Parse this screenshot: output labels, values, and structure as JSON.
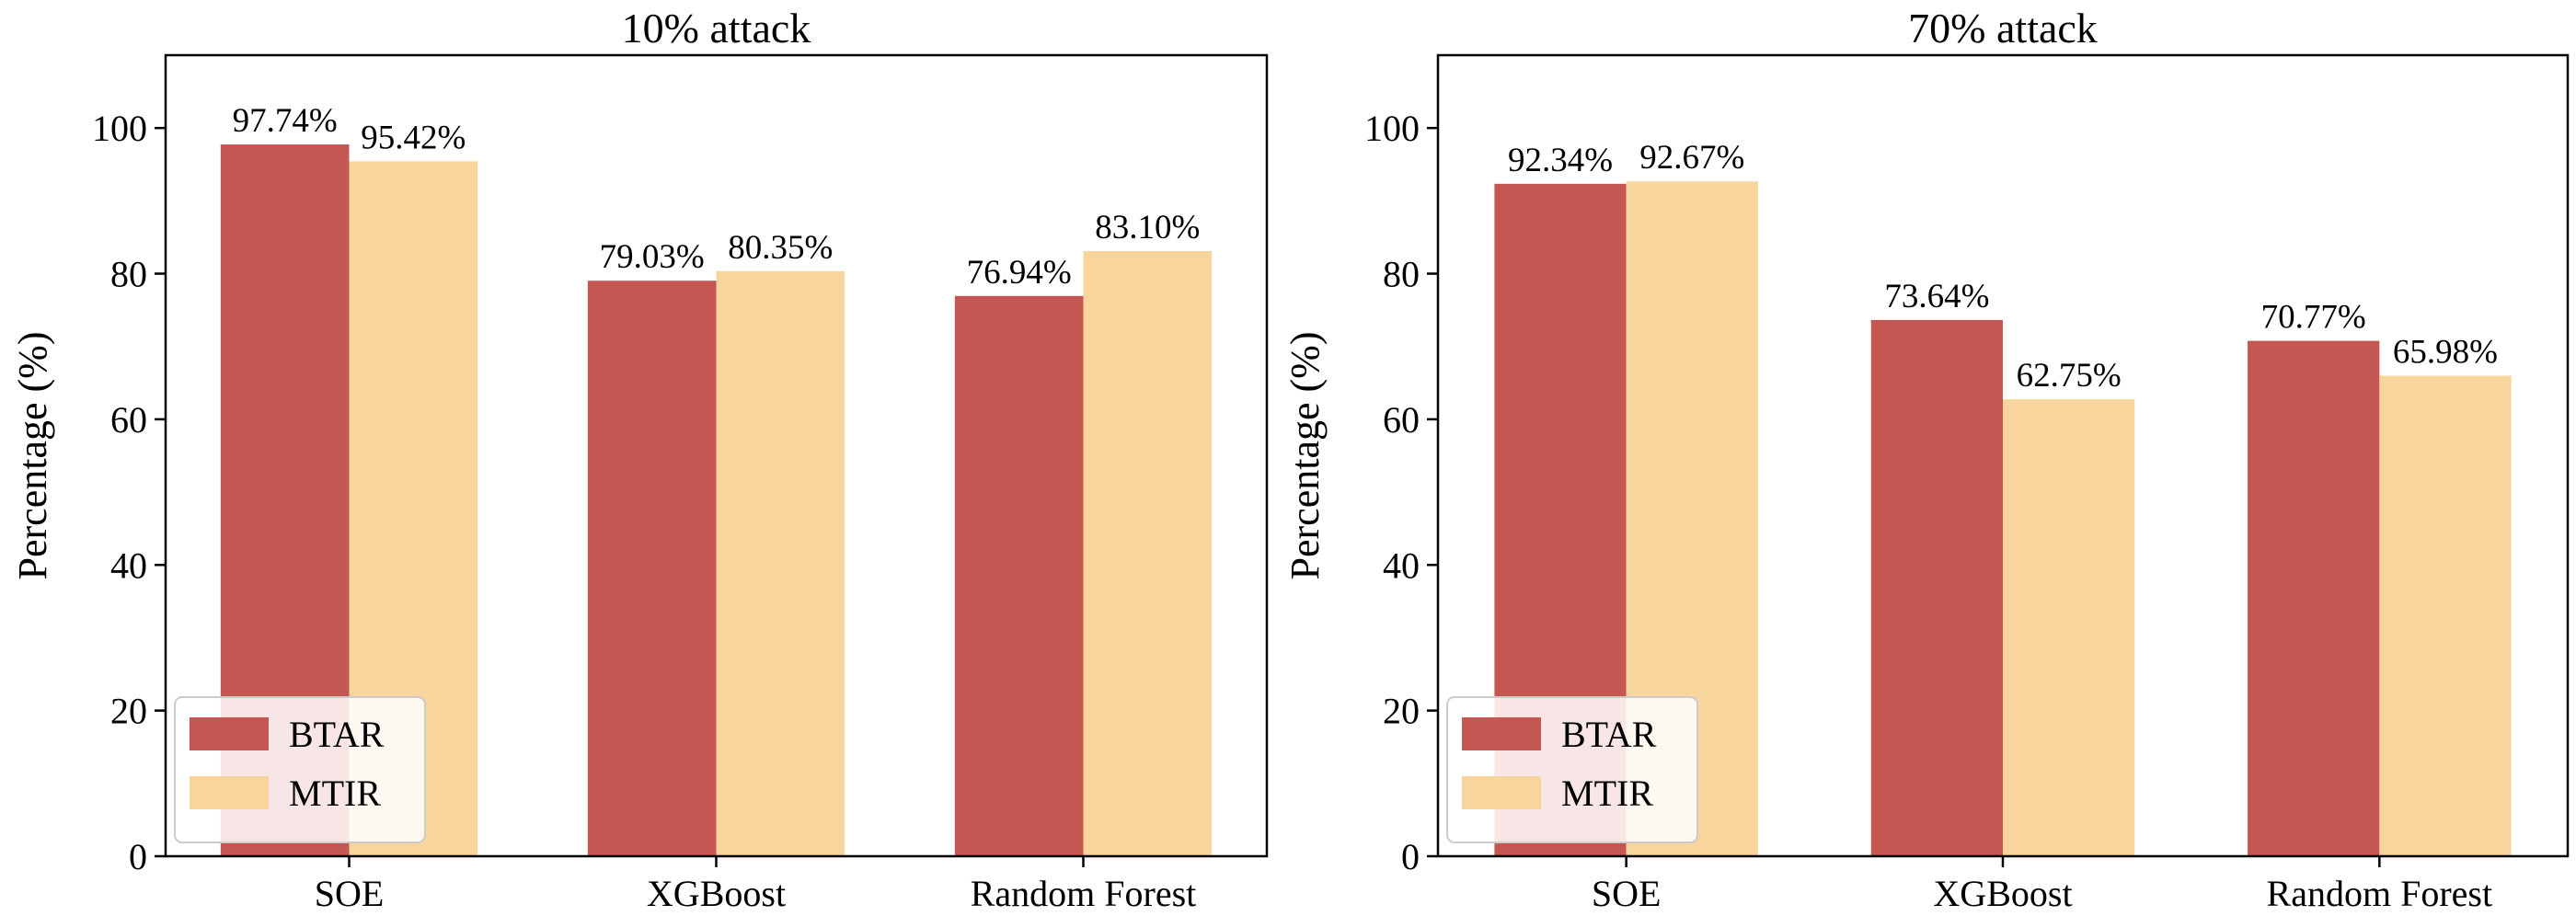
{
  "chart_data": [
    {
      "type": "bar",
      "title": "10% attack",
      "xlabel": "",
      "ylabel": "Percentage (%)",
      "ylim": [
        0,
        110
      ],
      "yticks": [
        0,
        20,
        40,
        60,
        80,
        100
      ],
      "grid": false,
      "legend_position": "bottom-left",
      "categories": [
        "SOE",
        "XGBoost",
        "Random Forest"
      ],
      "series": [
        {
          "name": "BTAR",
          "color": "#c55752",
          "values": [
            97.74,
            79.03,
            76.94
          ],
          "labels": [
            "97.74%",
            "79.03%",
            "76.94%"
          ]
        },
        {
          "name": "MTIR",
          "color": "#f8d59c",
          "values": [
            95.42,
            80.35,
            83.1
          ],
          "labels": [
            "95.42%",
            "80.35%",
            "83.10%"
          ]
        }
      ]
    },
    {
      "type": "bar",
      "title": "70% attack",
      "xlabel": "",
      "ylabel": "Percentage (%)",
      "ylim": [
        0,
        110
      ],
      "yticks": [
        0,
        20,
        40,
        60,
        80,
        100
      ],
      "grid": false,
      "legend_position": "bottom-left",
      "categories": [
        "SOE",
        "XGBoost",
        "Random Forest"
      ],
      "series": [
        {
          "name": "BTAR",
          "color": "#c55752",
          "values": [
            92.34,
            73.64,
            70.77
          ],
          "labels": [
            "92.34%",
            "73.64%",
            "70.77%"
          ]
        },
        {
          "name": "MTIR",
          "color": "#f8d59c",
          "values": [
            92.67,
            62.75,
            65.98
          ],
          "labels": [
            "92.67%",
            "62.75%",
            "65.98%"
          ]
        }
      ]
    }
  ]
}
